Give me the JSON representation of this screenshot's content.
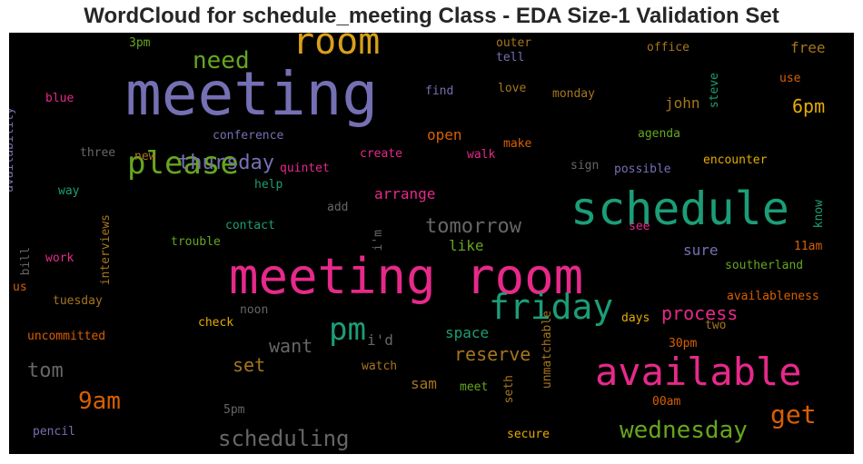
{
  "title": "WordCloud for schedule_meeting Class - EDA Size-1 Validation Set",
  "chart_data": {
    "type": "wordcloud",
    "title": "WordCloud for schedule_meeting Class - EDA Size-1 Validation Set",
    "background": "#000000",
    "palette": "Dark2",
    "words": [
      {
        "text": "meeting",
        "size": 66,
        "color": "#7570b3",
        "orientation": "horizontal"
      },
      {
        "text": "meeting room",
        "size": 54,
        "color": "#e7298a",
        "orientation": "horizontal"
      },
      {
        "text": "schedule",
        "size": 50,
        "color": "#1b9e77",
        "orientation": "horizontal"
      },
      {
        "text": "available",
        "size": 42,
        "color": "#e7298a",
        "orientation": "horizontal"
      },
      {
        "text": "room",
        "size": 40,
        "color": "#d8a01a",
        "orientation": "horizontal"
      },
      {
        "text": "friday",
        "size": 38,
        "color": "#1b9e77",
        "orientation": "horizontal"
      },
      {
        "text": "please",
        "size": 34,
        "color": "#66a61e",
        "orientation": "horizontal"
      },
      {
        "text": "pm",
        "size": 34,
        "color": "#1b9e77",
        "orientation": "horizontal"
      },
      {
        "text": "get",
        "size": 28,
        "color": "#d95f02",
        "orientation": "horizontal"
      },
      {
        "text": "9am",
        "size": 26,
        "color": "#d95f02",
        "orientation": "horizontal"
      },
      {
        "text": "wednesday",
        "size": 26,
        "color": "#66a61e",
        "orientation": "horizontal"
      },
      {
        "text": "need",
        "size": 26,
        "color": "#66a61e",
        "orientation": "horizontal"
      },
      {
        "text": "scheduling",
        "size": 24,
        "color": "#666666",
        "orientation": "horizontal"
      },
      {
        "text": "thursday",
        "size": 22,
        "color": "#7570b3",
        "orientation": "horizontal"
      },
      {
        "text": "tomorrow",
        "size": 22,
        "color": "#666666",
        "orientation": "horizontal"
      },
      {
        "text": "tom",
        "size": 22,
        "color": "#666666",
        "orientation": "horizontal"
      },
      {
        "text": "want",
        "size": 20,
        "color": "#666666",
        "orientation": "horizontal"
      },
      {
        "text": "process",
        "size": 20,
        "color": "#e7298a",
        "orientation": "horizontal"
      },
      {
        "text": "reserve",
        "size": 20,
        "color": "#a6761d",
        "orientation": "horizontal"
      },
      {
        "text": "set",
        "size": 20,
        "color": "#a6761d",
        "orientation": "horizontal"
      },
      {
        "text": "6pm",
        "size": 20,
        "color": "#e6ab02",
        "orientation": "horizontal"
      },
      {
        "text": "arrange",
        "size": 16,
        "color": "#e7298a",
        "orientation": "horizontal"
      },
      {
        "text": "open",
        "size": 16,
        "color": "#d95f02",
        "orientation": "horizontal"
      },
      {
        "text": "john",
        "size": 16,
        "color": "#a6761d",
        "orientation": "horizontal"
      },
      {
        "text": "free",
        "size": 16,
        "color": "#a6761d",
        "orientation": "horizontal"
      },
      {
        "text": "sure",
        "size": 16,
        "color": "#7570b3",
        "orientation": "horizontal"
      },
      {
        "text": "like",
        "size": 16,
        "color": "#66a61e",
        "orientation": "horizontal"
      },
      {
        "text": "space",
        "size": 16,
        "color": "#1b9e77",
        "orientation": "horizontal"
      },
      {
        "text": "sam",
        "size": 16,
        "color": "#a6761d",
        "orientation": "horizontal"
      },
      {
        "text": "i'd",
        "size": 16,
        "color": "#666666",
        "orientation": "horizontal"
      },
      {
        "text": "i'm",
        "size": 13,
        "color": "#666666",
        "orientation": "vertical"
      },
      {
        "text": "conference",
        "size": 13,
        "color": "#7570b3",
        "orientation": "horizontal"
      },
      {
        "text": "quintet",
        "size": 13,
        "color": "#e7298a",
        "orientation": "horizontal"
      },
      {
        "text": "create",
        "size": 13,
        "color": "#e7298a",
        "orientation": "horizontal"
      },
      {
        "text": "walk",
        "size": 13,
        "color": "#e7298a",
        "orientation": "horizontal"
      },
      {
        "text": "make",
        "size": 13,
        "color": "#d95f02",
        "orientation": "horizontal"
      },
      {
        "text": "sign",
        "size": 13,
        "color": "#666666",
        "orientation": "horizontal"
      },
      {
        "text": "possible",
        "size": 13,
        "color": "#7570b3",
        "orientation": "horizontal"
      },
      {
        "text": "encounter",
        "size": 13,
        "color": "#e6ab02",
        "orientation": "horizontal"
      },
      {
        "text": "agenda",
        "size": 13,
        "color": "#66a61e",
        "orientation": "horizontal"
      },
      {
        "text": "monday",
        "size": 13,
        "color": "#a6761d",
        "orientation": "horizontal"
      },
      {
        "text": "love",
        "size": 13,
        "color": "#a6761d",
        "orientation": "horizontal"
      },
      {
        "text": "find",
        "size": 13,
        "color": "#7570b3",
        "orientation": "horizontal"
      },
      {
        "text": "tell",
        "size": 13,
        "color": "#7570b3",
        "orientation": "horizontal"
      },
      {
        "text": "outer",
        "size": 13,
        "color": "#a6761d",
        "orientation": "horizontal"
      },
      {
        "text": "office",
        "size": 13,
        "color": "#a6761d",
        "orientation": "horizontal"
      },
      {
        "text": "steve",
        "size": 13,
        "color": "#1b9e77",
        "orientation": "vertical"
      },
      {
        "text": "use",
        "size": 13,
        "color": "#d95f02",
        "orientation": "horizontal"
      },
      {
        "text": "know",
        "size": 13,
        "color": "#1b9e77",
        "orientation": "vertical"
      },
      {
        "text": "3pm",
        "size": 13,
        "color": "#66a61e",
        "orientation": "horizontal"
      },
      {
        "text": "blue",
        "size": 13,
        "color": "#e7298a",
        "orientation": "horizontal"
      },
      {
        "text": "availability",
        "size": 13,
        "color": "#7570b3",
        "orientation": "vertical"
      },
      {
        "text": "three",
        "size": 13,
        "color": "#666666",
        "orientation": "horizontal"
      },
      {
        "text": "new",
        "size": 13,
        "color": "#a6761d",
        "orientation": "horizontal"
      },
      {
        "text": "way",
        "size": 13,
        "color": "#1b9e77",
        "orientation": "horizontal"
      },
      {
        "text": "help",
        "size": 13,
        "color": "#1b9e77",
        "orientation": "horizontal"
      },
      {
        "text": "add",
        "size": 13,
        "color": "#666666",
        "orientation": "horizontal"
      },
      {
        "text": "contact",
        "size": 13,
        "color": "#1b9e77",
        "orientation": "horizontal"
      },
      {
        "text": "interviews",
        "size": 13,
        "color": "#a6761d",
        "orientation": "vertical"
      },
      {
        "text": "trouble",
        "size": 13,
        "color": "#66a61e",
        "orientation": "horizontal"
      },
      {
        "text": "see",
        "size": 13,
        "color": "#e7298a",
        "orientation": "horizontal"
      },
      {
        "text": "11am",
        "size": 13,
        "color": "#d95f02",
        "orientation": "horizontal"
      },
      {
        "text": "southerland",
        "size": 13,
        "color": "#66a61e",
        "orientation": "horizontal"
      },
      {
        "text": "availableness",
        "size": 13,
        "color": "#d95f02",
        "orientation": "horizontal"
      },
      {
        "text": "bill",
        "size": 13,
        "color": "#666666",
        "orientation": "vertical"
      },
      {
        "text": "work",
        "size": 13,
        "color": "#e7298a",
        "orientation": "horizontal"
      },
      {
        "text": "us",
        "size": 13,
        "color": "#d95f02",
        "orientation": "horizontal"
      },
      {
        "text": "tuesday",
        "size": 13,
        "color": "#a6761d",
        "orientation": "horizontal"
      },
      {
        "text": "noon",
        "size": 13,
        "color": "#666666",
        "orientation": "horizontal"
      },
      {
        "text": "check",
        "size": 13,
        "color": "#e6ab02",
        "orientation": "horizontal"
      },
      {
        "text": "uncommitted",
        "size": 13,
        "color": "#d95f02",
        "orientation": "horizontal"
      },
      {
        "text": "days",
        "size": 13,
        "color": "#e6ab02",
        "orientation": "horizontal"
      },
      {
        "text": "two",
        "size": 13,
        "color": "#a6761d",
        "orientation": "horizontal"
      },
      {
        "text": "30pm",
        "size": 13,
        "color": "#d95f02",
        "orientation": "horizontal"
      },
      {
        "text": "unmatchable",
        "size": 13,
        "color": "#a6761d",
        "orientation": "vertical"
      },
      {
        "text": "watch",
        "size": 13,
        "color": "#a6761d",
        "orientation": "horizontal"
      },
      {
        "text": "meet",
        "size": 13,
        "color": "#66a61e",
        "orientation": "horizontal"
      },
      {
        "text": "seth",
        "size": 13,
        "color": "#a6761d",
        "orientation": "vertical"
      },
      {
        "text": "00am",
        "size": 13,
        "color": "#d95f02",
        "orientation": "horizontal"
      },
      {
        "text": "5pm",
        "size": 13,
        "color": "#666666",
        "orientation": "horizontal"
      },
      {
        "text": "secure",
        "size": 13,
        "color": "#e6ab02",
        "orientation": "horizontal"
      },
      {
        "text": "pencil",
        "size": 13,
        "color": "#7570b3",
        "orientation": "horizontal"
      }
    ]
  }
}
